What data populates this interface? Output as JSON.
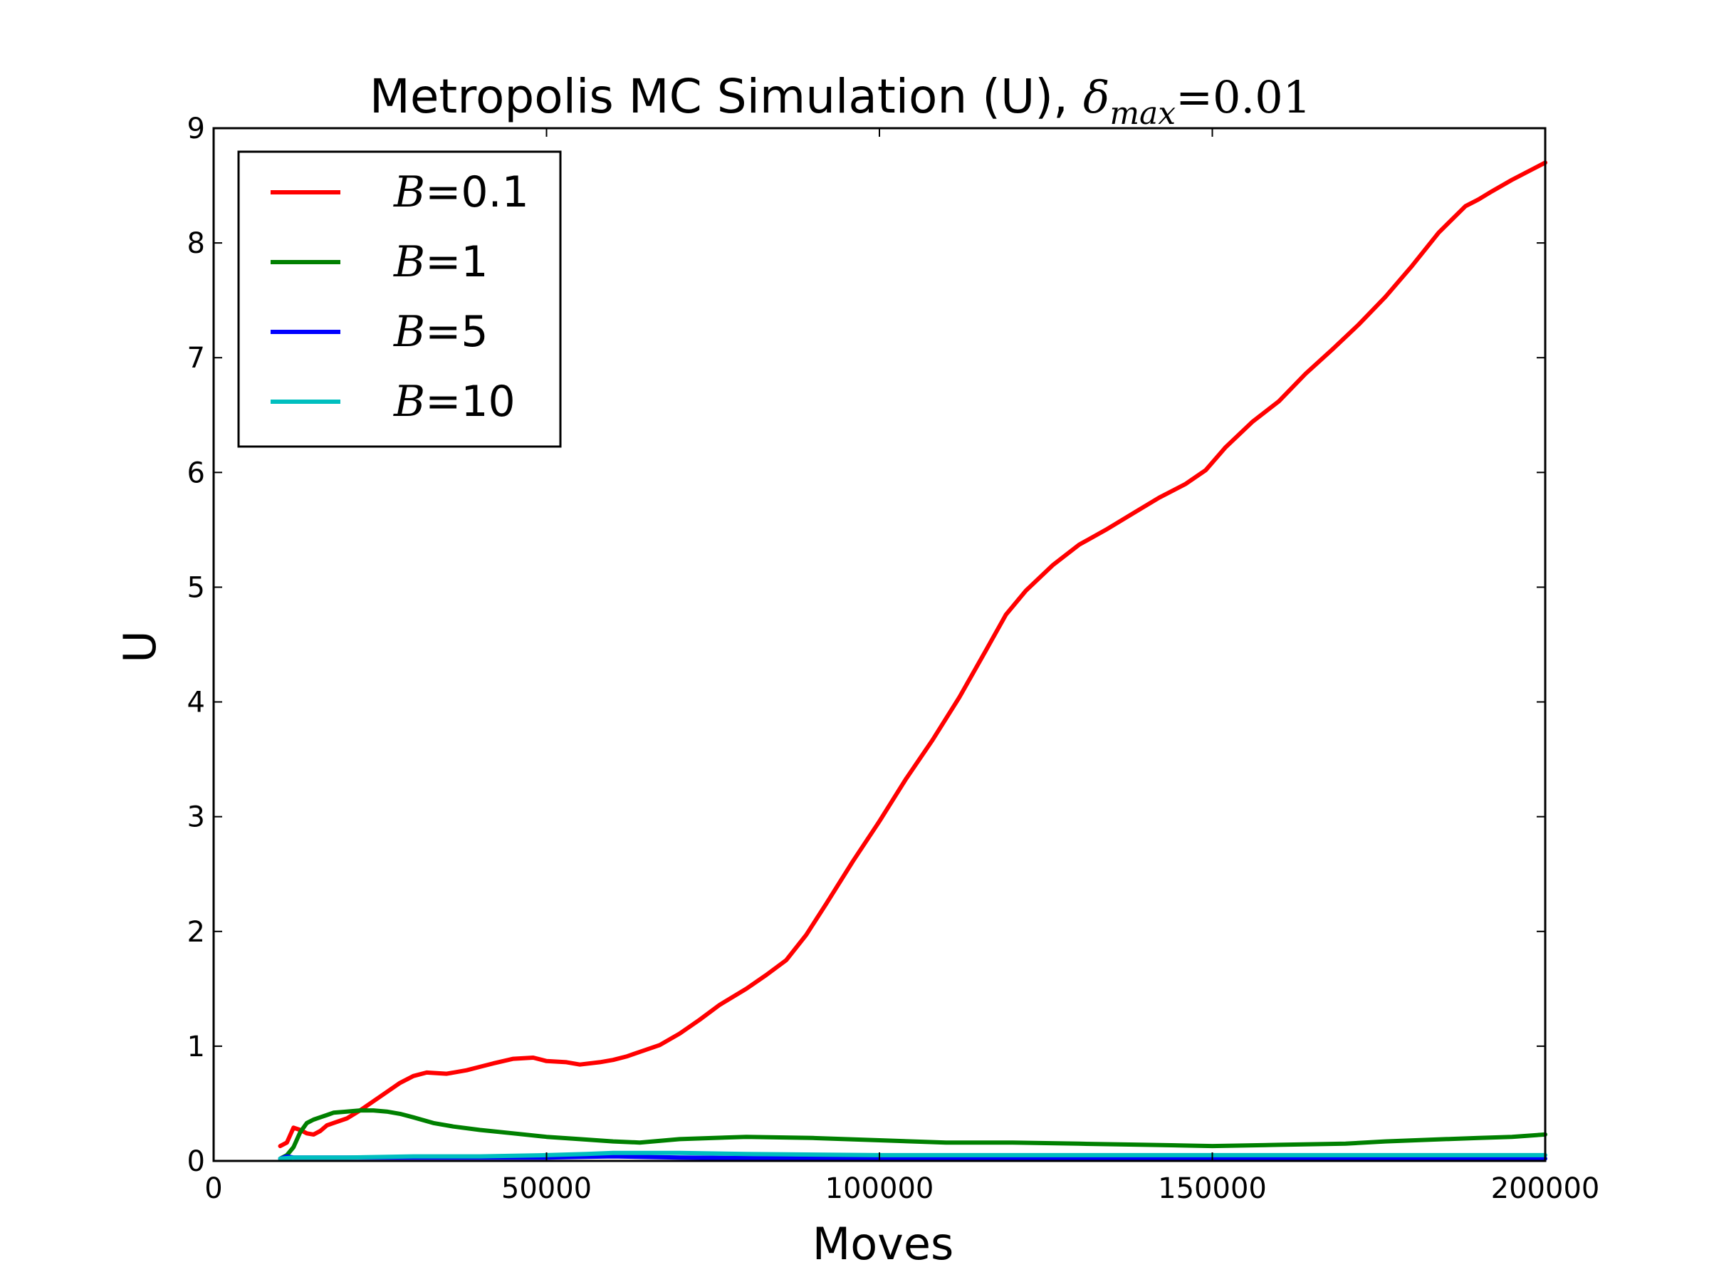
{
  "chart_data": {
    "type": "line",
    "title": {
      "text": "Metropolis MC Simulation (U), ",
      "symbol": "δ",
      "subscript": "max",
      "equation": "=0.01"
    },
    "xlabel": "Moves",
    "ylabel": "U",
    "xlim": [
      0,
      200000
    ],
    "ylim": [
      0,
      9
    ],
    "xticks": [
      0,
      50000,
      100000,
      150000,
      200000
    ],
    "xtick_labels": [
      "0",
      "50000",
      "100000",
      "150000",
      "200000"
    ],
    "yticks": [
      0,
      1,
      2,
      3,
      4,
      5,
      6,
      7,
      8,
      9
    ],
    "ytick_labels": [
      "0",
      "1",
      "2",
      "3",
      "4",
      "5",
      "6",
      "7",
      "8",
      "9"
    ],
    "grid": false,
    "legend_position": "top-left",
    "series": [
      {
        "name": "B=0.1",
        "legend_var": "B",
        "legend_value": "=0.1",
        "color": "#ff0000",
        "x": [
          10000,
          11000,
          12000,
          13000,
          14000,
          15000,
          16000,
          17000,
          18000,
          20000,
          22000,
          24000,
          26000,
          28000,
          30000,
          32000,
          35000,
          38000,
          40000,
          42000,
          45000,
          48000,
          50000,
          53000,
          55000,
          58000,
          60000,
          62000,
          64000,
          67000,
          70000,
          73000,
          76000,
          80000,
          83000,
          86000,
          89000,
          92000,
          96000,
          100000,
          104000,
          108000,
          112000,
          116000,
          119000,
          122000,
          126000,
          130000,
          134000,
          138000,
          142000,
          146000,
          149000,
          152000,
          156000,
          160000,
          164000,
          168000,
          172000,
          176000,
          180000,
          184000,
          188000,
          190000,
          192000,
          195000,
          198000,
          200000
        ],
        "y": [
          0.13,
          0.16,
          0.29,
          0.27,
          0.24,
          0.23,
          0.26,
          0.31,
          0.33,
          0.37,
          0.44,
          0.52,
          0.6,
          0.68,
          0.74,
          0.77,
          0.76,
          0.79,
          0.82,
          0.85,
          0.89,
          0.9,
          0.87,
          0.86,
          0.84,
          0.86,
          0.88,
          0.91,
          0.95,
          1.01,
          1.11,
          1.23,
          1.36,
          1.5,
          1.62,
          1.75,
          1.97,
          2.24,
          2.61,
          2.96,
          3.33,
          3.67,
          4.04,
          4.45,
          4.76,
          4.97,
          5.19,
          5.37,
          5.5,
          5.64,
          5.78,
          5.9,
          6.02,
          6.22,
          6.44,
          6.62,
          6.86,
          7.07,
          7.29,
          7.53,
          7.8,
          8.09,
          8.32,
          8.38,
          8.45,
          8.55,
          8.64,
          8.7
        ]
      },
      {
        "name": "B=1",
        "legend_var": "B",
        "legend_value": "=1",
        "color": "#008000",
        "x": [
          10000,
          11000,
          12000,
          13000,
          14000,
          15000,
          16000,
          17000,
          18000,
          20000,
          22000,
          24000,
          26000,
          28000,
          30000,
          33000,
          36000,
          40000,
          45000,
          50000,
          55000,
          60000,
          64000,
          70000,
          80000,
          90000,
          100000,
          110000,
          120000,
          130000,
          140000,
          150000,
          160000,
          170000,
          176000,
          185000,
          190000,
          195000,
          200000
        ],
        "y": [
          0.02,
          0.05,
          0.12,
          0.25,
          0.33,
          0.36,
          0.38,
          0.4,
          0.42,
          0.43,
          0.44,
          0.44,
          0.43,
          0.41,
          0.38,
          0.33,
          0.3,
          0.27,
          0.24,
          0.21,
          0.19,
          0.17,
          0.16,
          0.19,
          0.21,
          0.2,
          0.18,
          0.16,
          0.16,
          0.15,
          0.14,
          0.13,
          0.14,
          0.15,
          0.17,
          0.19,
          0.2,
          0.21,
          0.23
        ]
      },
      {
        "name": "B=5",
        "legend_var": "B",
        "legend_value": "=5",
        "color": "#0000ff",
        "x": [
          10000,
          11000,
          12000,
          14000,
          20000,
          30000,
          40000,
          50000,
          55000,
          60000,
          70000,
          80000,
          90000,
          100000,
          120000,
          140000,
          160000,
          180000,
          200000
        ],
        "y": [
          0.02,
          0.04,
          0.03,
          0.03,
          0.03,
          0.03,
          0.03,
          0.03,
          0.035,
          0.04,
          0.03,
          0.025,
          0.02,
          0.02,
          0.02,
          0.02,
          0.02,
          0.02,
          0.02
        ]
      },
      {
        "name": "B=10",
        "legend_var": "B",
        "legend_value": "=10",
        "color": "#00bfbf",
        "x": [
          10000,
          12000,
          16000,
          20000,
          30000,
          40000,
          50000,
          56000,
          60000,
          70000,
          80000,
          100000,
          120000,
          140000,
          160000,
          180000,
          200000
        ],
        "y": [
          0.02,
          0.03,
          0.03,
          0.03,
          0.04,
          0.04,
          0.05,
          0.06,
          0.07,
          0.07,
          0.06,
          0.05,
          0.05,
          0.05,
          0.05,
          0.05,
          0.05
        ]
      }
    ]
  }
}
